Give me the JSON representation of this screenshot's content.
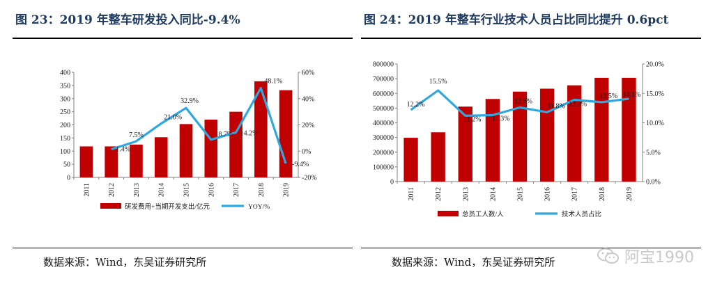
{
  "figures": [
    {
      "title": "图 23：2019 年整车研发投入同比-9.4%",
      "source": "数据来源：Wind，东吴证券研究所"
    },
    {
      "title": "图 24：2019 年整车行业技术人员占比同比提升 0.6pct",
      "source": "数据来源：Wind，东吴证券研究所"
    }
  ],
  "watermark": {
    "text": "阿宝1990",
    "icon": "wechat-icon"
  },
  "colors": {
    "bar": "#c00000",
    "line": "#2ea8e0",
    "title": "#1f3b60"
  },
  "chart_data": [
    {
      "type": "bar",
      "categories": [
        "2011",
        "2012",
        "2013",
        "2014",
        "2015",
        "2016",
        "2017",
        "2018",
        "2019"
      ],
      "series": [
        {
          "name": "研发费用+当期开发支出/亿元",
          "type": "bar",
          "axis": "left",
          "values": [
            118,
            118,
            125,
            153,
            203,
            220,
            250,
            366,
            332
          ]
        },
        {
          "name": "YOY/%",
          "type": "line",
          "axis": "right",
          "values": [
            null,
            1.4,
            7.5,
            21.0,
            32.9,
            8.7,
            14.2,
            48.1,
            -9.4
          ],
          "labels": [
            "",
            "1.4%",
            "7.5%",
            "21.0%",
            "32.9%",
            "8.7%",
            "14.2%",
            "48.1%",
            "-9.4%"
          ]
        }
      ],
      "ylim": [
        0,
        400
      ],
      "yticks": [
        "0",
        "50",
        "100",
        "150",
        "200",
        "250",
        "300",
        "350",
        "400"
      ],
      "y2lim": [
        -20,
        60
      ],
      "y2ticks": [
        "-20%",
        "0%",
        "20%",
        "40%",
        "60%"
      ],
      "legend": [
        "研发费用+当期开发支出/亿元",
        "YOY/%"
      ],
      "legend_position": "bottom"
    },
    {
      "type": "bar",
      "categories": [
        "2011",
        "2012",
        "2013",
        "2014",
        "2015",
        "2016",
        "2017",
        "2018",
        "2019"
      ],
      "series": [
        {
          "name": "总员工人数/人",
          "type": "bar",
          "axis": "left",
          "values": [
            298000,
            335000,
            510000,
            562000,
            612000,
            632000,
            655000,
            706000,
            706000
          ]
        },
        {
          "name": "技术人员占比",
          "type": "line",
          "axis": "right",
          "values": [
            12.2,
            15.5,
            11.2,
            11.3,
            12.6,
            11.8,
            13.9,
            13.5,
            14.1
          ],
          "labels": [
            "12.2%",
            "15.5%",
            "11.2%",
            "11.3%",
            "12.6%",
            "11.8%",
            "13.9%",
            "13.5%",
            "14.1%"
          ]
        }
      ],
      "ylim": [
        0,
        800000
      ],
      "yticks": [
        "0",
        "100000",
        "200000",
        "300000",
        "400000",
        "500000",
        "600000",
        "700000",
        "800000"
      ],
      "y2lim": [
        0,
        20
      ],
      "y2ticks": [
        "0.0%",
        "5.0%",
        "10.0%",
        "15.0%",
        "20.0%"
      ],
      "legend": [
        "总员工人数/人",
        "技术人员占比"
      ],
      "legend_position": "bottom"
    }
  ]
}
